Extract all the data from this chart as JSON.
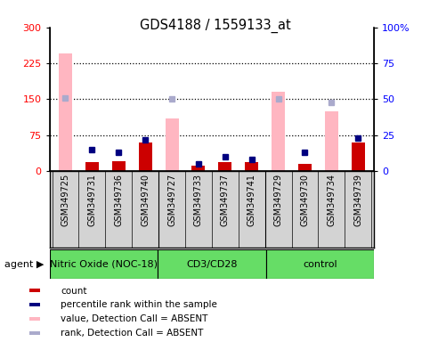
{
  "title": "GDS4188 / 1559133_at",
  "samples": [
    "GSM349725",
    "GSM349731",
    "GSM349736",
    "GSM349740",
    "GSM349727",
    "GSM349733",
    "GSM349737",
    "GSM349741",
    "GSM349729",
    "GSM349730",
    "GSM349734",
    "GSM349739"
  ],
  "groups": [
    {
      "name": "Nitric Oxide (NOC-18)",
      "start": 0,
      "end": 4
    },
    {
      "name": "CD3/CD28",
      "start": 4,
      "end": 8
    },
    {
      "name": "control",
      "start": 8,
      "end": 12
    }
  ],
  "bar_values": [
    245,
    18,
    20,
    60,
    110,
    12,
    18,
    18,
    165,
    15,
    125,
    60
  ],
  "bar_absent": [
    true,
    false,
    false,
    false,
    true,
    false,
    false,
    false,
    true,
    false,
    true,
    false
  ],
  "rank_values": [
    51,
    15,
    13,
    22,
    50,
    5,
    10,
    8,
    50,
    13,
    48,
    23
  ],
  "rank_absent": [
    true,
    false,
    false,
    false,
    true,
    false,
    false,
    false,
    true,
    false,
    true,
    false
  ],
  "ylim_left": [
    0,
    300
  ],
  "ylim_right": [
    0,
    100
  ],
  "yticks_left": [
    0,
    75,
    150,
    225,
    300
  ],
  "yticks_right": [
    0,
    25,
    50,
    75,
    100
  ],
  "grid_values": [
    75,
    150,
    225
  ],
  "bar_color_present": "#cc0000",
  "bar_color_absent": "#ffb6c1",
  "rank_color_present": "#000080",
  "rank_color_absent": "#aaaacc",
  "group_color_light": "#90ee90",
  "group_color_dark": "#4cca4c",
  "bg_color_plot": "#ffffff",
  "label_area_color": "#d3d3d3",
  "legend_items": [
    {
      "color": "#cc0000",
      "label": "count"
    },
    {
      "color": "#000080",
      "label": "percentile rank within the sample"
    },
    {
      "color": "#ffb6c1",
      "label": "value, Detection Call = ABSENT"
    },
    {
      "color": "#aaaacc",
      "label": "rank, Detection Call = ABSENT"
    }
  ]
}
